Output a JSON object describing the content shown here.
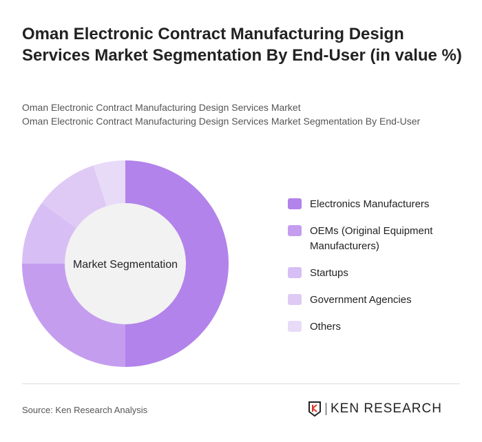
{
  "title": "Oman Electronic Contract Manufacturing Design Services Market Segmentation By End-User (in value %)",
  "subtitle1": "Oman Electronic Contract Manufacturing Design Services Market",
  "subtitle2": "Oman Electronic Contract Manufacturing Design Services Market Segmentation By End-User",
  "chart_data": {
    "type": "pie",
    "variant": "donut",
    "center_label": "Market Segmentation",
    "categories": [
      "Electronics Manufacturers",
      "OEMs (Original Equipment Manufacturers)",
      "Startups",
      "Government Agencies",
      "Others"
    ],
    "values": [
      50,
      25,
      10,
      10,
      5
    ],
    "colors": [
      "#b283ea",
      "#c49def",
      "#d7bff5",
      "#dfcaf6",
      "#e8dbf8"
    ],
    "center_color": "#f2f2f2",
    "legend_position": "right"
  },
  "footer": {
    "source": "Source: Ken Research Analysis",
    "logo_text": "KEN RESEARCH"
  }
}
